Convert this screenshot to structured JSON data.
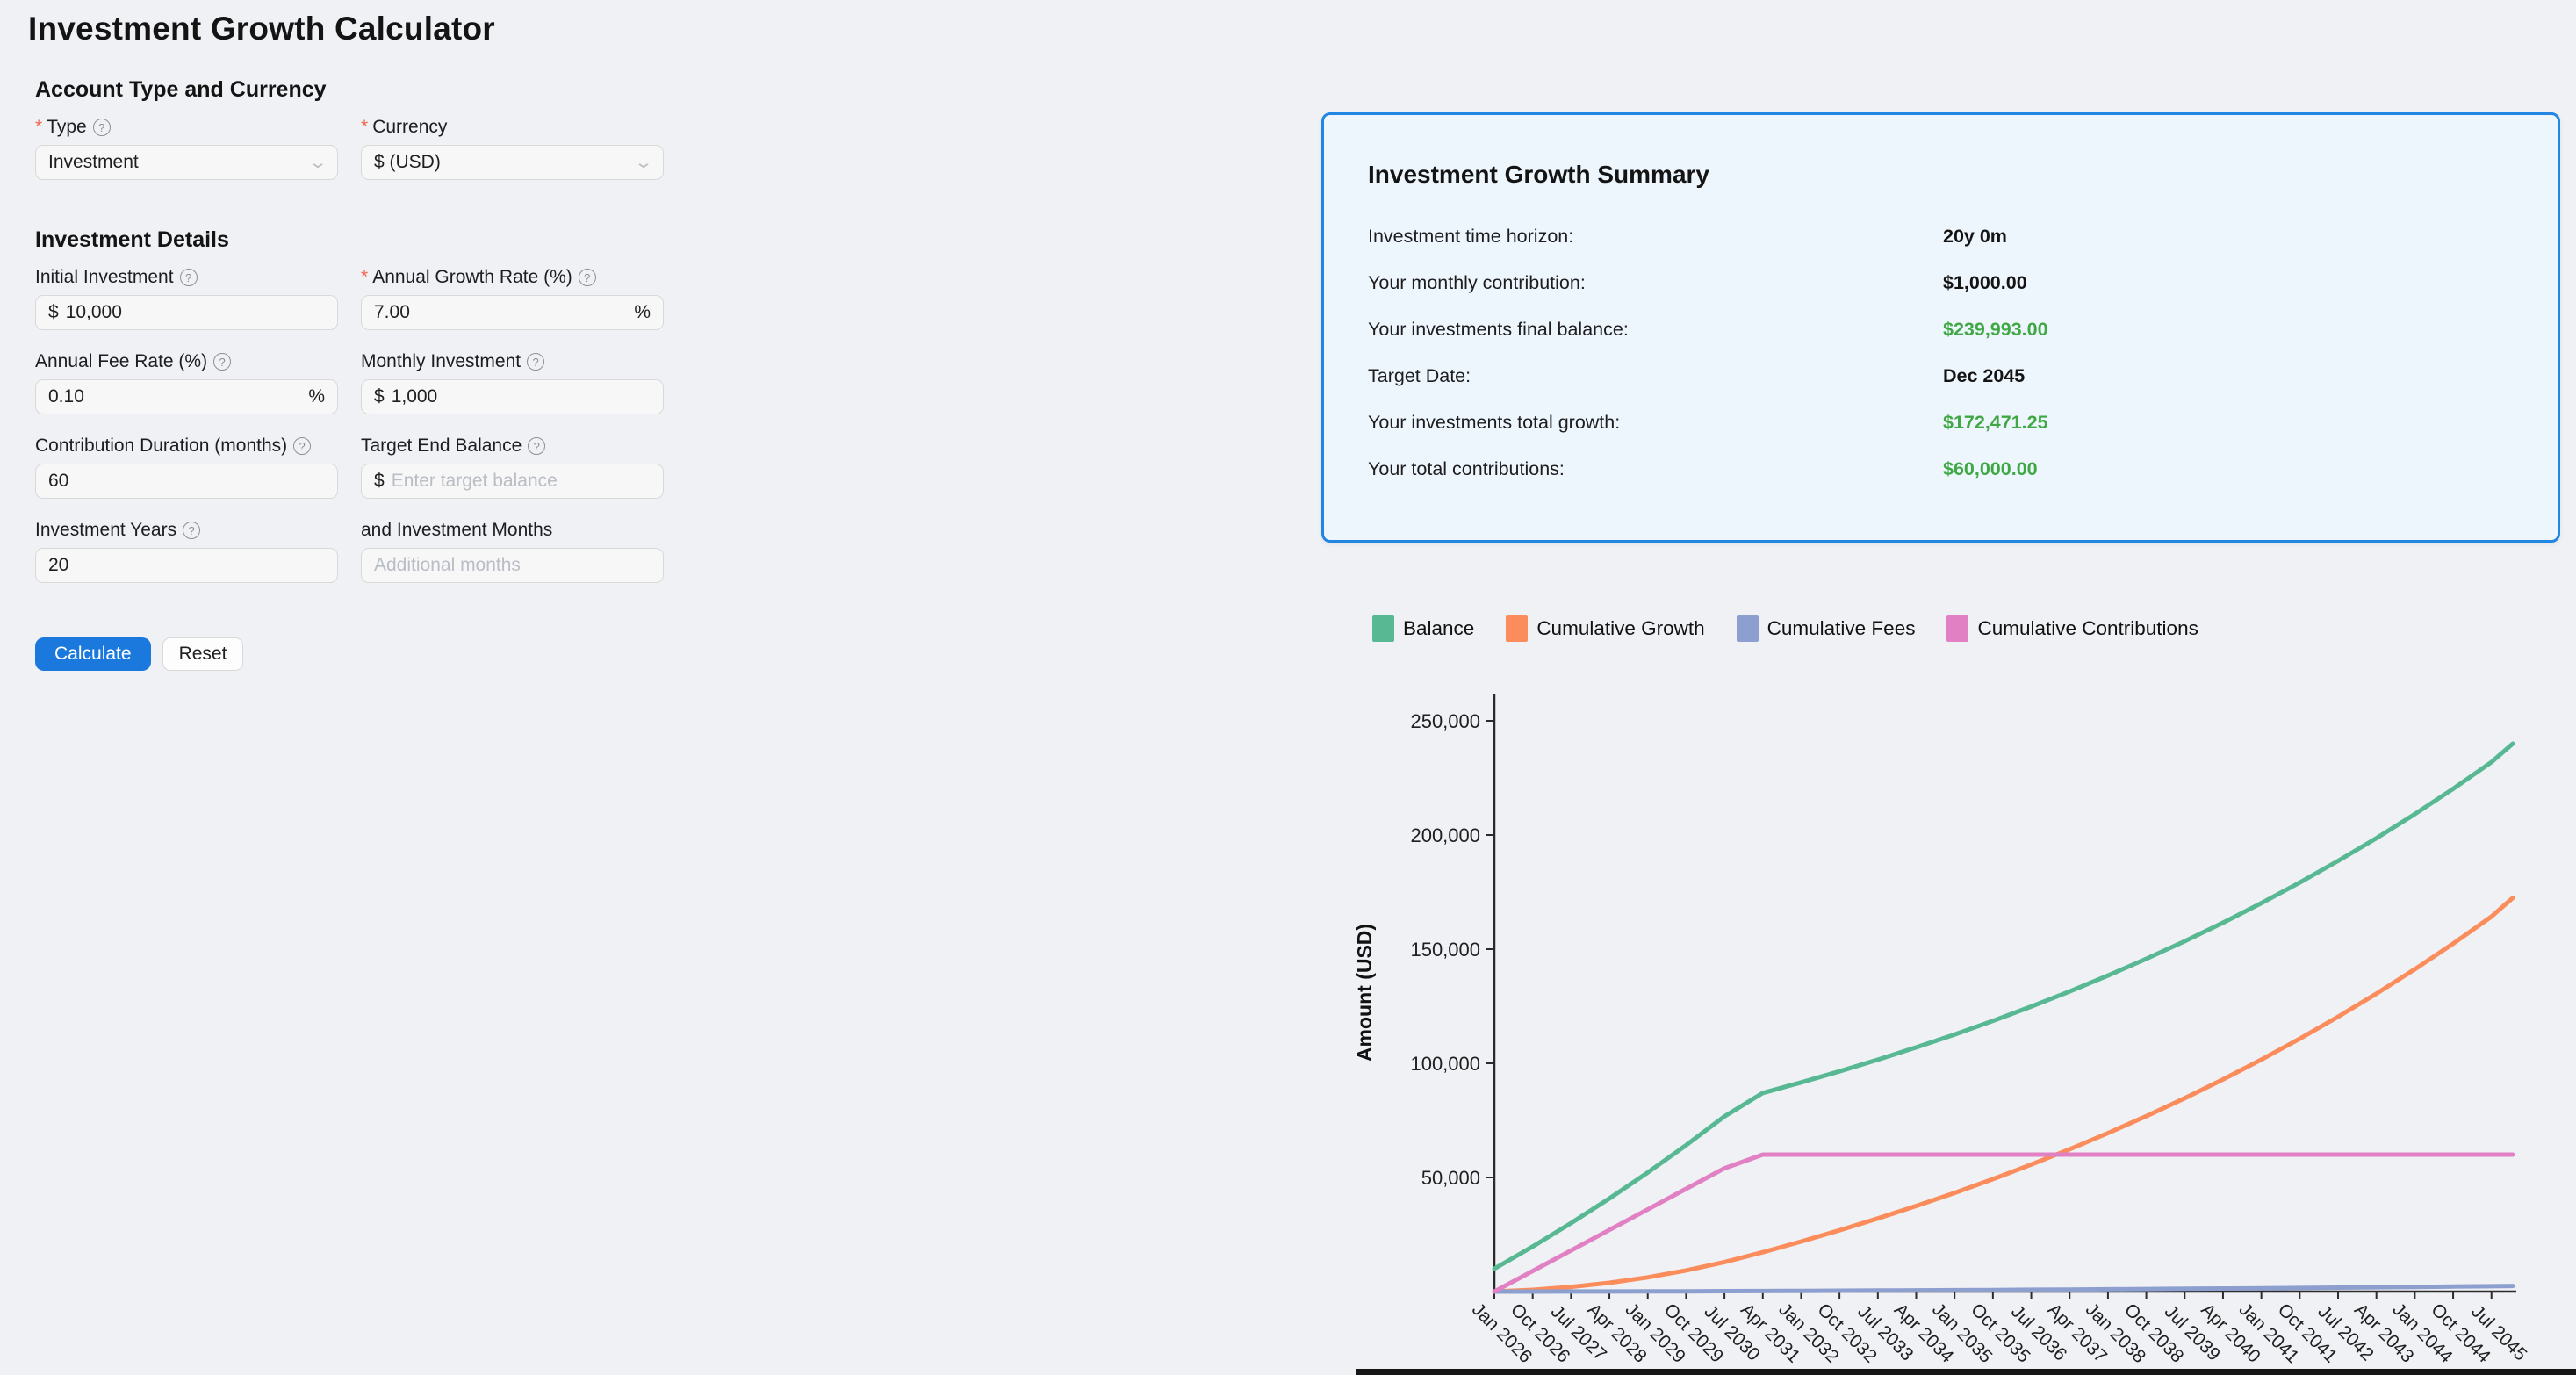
{
  "page": {
    "title": "Investment Growth Calculator"
  },
  "form": {
    "sections": [
      {
        "heading": "Account Type and Currency",
        "field_keys": [
          "type",
          "currency"
        ]
      },
      {
        "heading": "Investment Details",
        "field_keys": [
          "initial_investment",
          "annual_growth_rate",
          "annual_fee_rate",
          "monthly_investment",
          "contribution_duration",
          "target_end_balance",
          "investment_years",
          "investment_months"
        ]
      }
    ],
    "fields": {
      "type": {
        "label": "Type",
        "kind": "select",
        "required": true,
        "help": true,
        "value": "Investment"
      },
      "currency": {
        "label": "Currency",
        "kind": "select",
        "required": true,
        "help": false,
        "value": "$ (USD)"
      },
      "initial_investment": {
        "label": "Initial Investment",
        "kind": "input",
        "required": false,
        "help": true,
        "prefix": "$",
        "value": "10,000"
      },
      "annual_growth_rate": {
        "label": "Annual Growth Rate (%)",
        "kind": "input",
        "required": true,
        "help": true,
        "value": "7.00",
        "suffix": "%"
      },
      "annual_fee_rate": {
        "label": "Annual Fee Rate (%)",
        "kind": "input",
        "required": false,
        "help": true,
        "value": "0.10",
        "suffix": "%"
      },
      "monthly_investment": {
        "label": "Monthly Investment",
        "kind": "input",
        "required": false,
        "help": true,
        "prefix": "$",
        "value": "1,000"
      },
      "contribution_duration": {
        "label": "Contribution Duration (months)",
        "kind": "input",
        "required": false,
        "help": true,
        "value": "60"
      },
      "target_end_balance": {
        "label": "Target End Balance",
        "kind": "input",
        "required": false,
        "help": true,
        "prefix": "$",
        "value": "",
        "placeholder": "Enter target balance"
      },
      "investment_years": {
        "label": "Investment Years",
        "kind": "input",
        "required": false,
        "help": true,
        "value": "20"
      },
      "investment_months": {
        "label": "and Investment Months",
        "kind": "input",
        "required": false,
        "help": false,
        "value": "",
        "placeholder": "Additional months"
      }
    },
    "buttons": {
      "calculate": "Calculate",
      "reset": "Reset"
    }
  },
  "summary": {
    "title": "Investment Growth Summary",
    "rows": [
      {
        "label": "Investment time horizon:",
        "value": "20y 0m",
        "color": "dark"
      },
      {
        "label": "Your monthly contribution:",
        "value": "$1,000.00",
        "color": "dark"
      },
      {
        "label": "Your investments final balance:",
        "value": "$239,993.00",
        "color": "green"
      },
      {
        "label": "Target Date:",
        "value": "Dec 2045",
        "color": "dark"
      },
      {
        "label": "Your investments total growth:",
        "value": "$172,471.25",
        "color": "green"
      },
      {
        "label": "Your total contributions:",
        "value": "$60,000.00",
        "color": "green"
      }
    ],
    "colors": {
      "green": "#3fa845",
      "border": "#2287e2",
      "background": "#eef6fd"
    }
  },
  "chart_data": {
    "type": "line",
    "ylabel": "Amount (USD)",
    "ylim": [
      0,
      260000
    ],
    "grid": false,
    "legend_position": "top",
    "y_ticks": [
      50000,
      100000,
      150000,
      200000,
      250000
    ],
    "y_tick_labels": [
      "50,000",
      "100,000",
      "150,000",
      "200,000",
      "250,000"
    ],
    "x_months": [
      0,
      9,
      18,
      27,
      36,
      45,
      54,
      63,
      72,
      81,
      90,
      99,
      108,
      117,
      126,
      135,
      144,
      153,
      162,
      171,
      180,
      189,
      198,
      207,
      216,
      225,
      234,
      239
    ],
    "x_tick_labels": [
      "Jan 2026",
      "Oct 2026",
      "Jul 2027",
      "Apr 2028",
      "Jan 2029",
      "Oct 2029",
      "Jul 2030",
      "Apr 2031",
      "Jan 2032",
      "Oct 2032",
      "Jul 2033",
      "Apr 2034",
      "Jan 2035",
      "Oct 2035",
      "Jul 2036",
      "Apr 2037",
      "Jan 2038",
      "Oct 2038",
      "Jul 2039",
      "Apr 2040",
      "Jan 2041",
      "Oct 2041",
      "Jul 2042",
      "Apr 2043",
      "Jan 2044",
      "Oct 2044",
      "Jul 2045",
      ""
    ],
    "series": [
      {
        "name": "Balance",
        "color": "#57b893",
        "values": [
          10000,
          19747,
          29991,
          40787,
          52153,
          64126,
          76742,
          87000,
          91604,
          96452,
          101566,
          106944,
          112605,
          118565,
          124850,
          131461,
          138422,
          145751,
          153464,
          161588,
          170148,
          179161,
          188645,
          198632,
          209151,
          220225,
          231906,
          239993
        ]
      },
      {
        "name": "Cumulative Growth",
        "color": "#fb8c5b",
        "values": [
          0,
          758,
          2021,
          3843,
          6244,
          9260,
          12929,
          17248,
          21918,
          26837,
          32025,
          37481,
          43225,
          49271,
          55647,
          62355,
          69417,
          76852,
          84678,
          92920,
          101604,
          110748,
          120370,
          130502,
          141174,
          152409,
          164260,
          172471
        ]
      },
      {
        "name": "Cumulative Fees",
        "color": "#8c9fce",
        "values": [
          0,
          11,
          30,
          56,
          91,
          134,
          187,
          248,
          314,
          385,
          459,
          537,
          620,
          706,
          797,
          894,
          995,
          1101,
          1214,
          1332,
          1456,
          1587,
          1725,
          1870,
          2023,
          2184,
          2354,
          2478
        ]
      },
      {
        "name": "Cumulative Contributions",
        "color": "#e181c4",
        "values": [
          0,
          9000,
          18000,
          27000,
          36000,
          45000,
          54000,
          60000,
          60000,
          60000,
          60000,
          60000,
          60000,
          60000,
          60000,
          60000,
          60000,
          60000,
          60000,
          60000,
          60000,
          60000,
          60000,
          60000,
          60000,
          60000,
          60000,
          60000
        ]
      }
    ]
  }
}
